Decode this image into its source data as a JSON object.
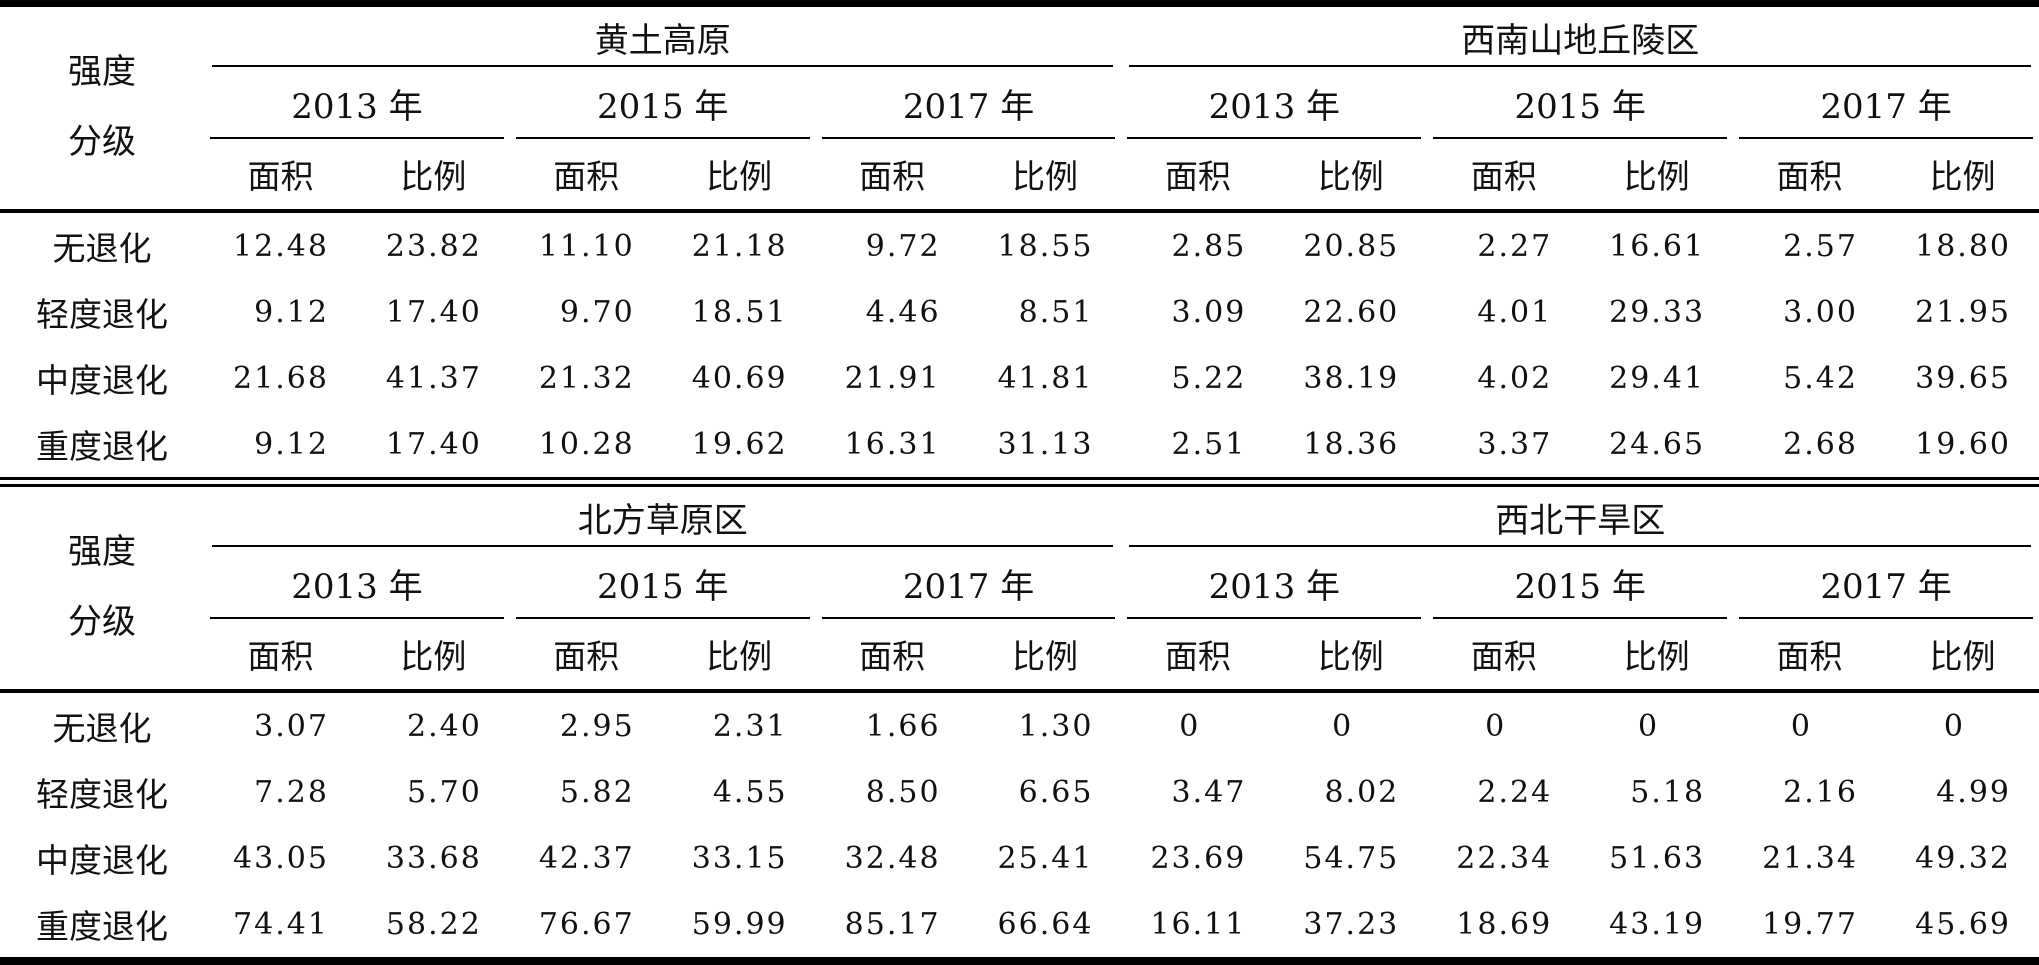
{
  "table": {
    "row_header": {
      "line1": "强度",
      "line2": "分级"
    },
    "col_headers": {
      "area": "面积",
      "ratio": "比例"
    },
    "years": [
      "2013 年",
      "2015 年",
      "2017 年"
    ],
    "colors": {
      "text": "#111111",
      "line": "#000000",
      "background": "#ffffff"
    },
    "sections": [
      {
        "regions": [
          "黄土高原",
          "西南山地丘陵区"
        ],
        "rows": [
          {
            "label": "无退化",
            "values": [
              "12.48",
              "23.82",
              "11.10",
              "21.18",
              "9.72",
              "18.55",
              "2.85",
              "20.85",
              "2.27",
              "16.61",
              "2.57",
              "18.80"
            ]
          },
          {
            "label": "轻度退化",
            "values": [
              "9.12",
              "17.40",
              "9.70",
              "18.51",
              "4.46",
              "8.51",
              "3.09",
              "22.60",
              "4.01",
              "29.33",
              "3.00",
              "21.95"
            ]
          },
          {
            "label": "中度退化",
            "values": [
              "21.68",
              "41.37",
              "21.32",
              "40.69",
              "21.91",
              "41.81",
              "5.22",
              "38.19",
              "4.02",
              "29.41",
              "5.42",
              "39.65"
            ]
          },
          {
            "label": "重度退化",
            "values": [
              "9.12",
              "17.40",
              "10.28",
              "19.62",
              "16.31",
              "31.13",
              "2.51",
              "18.36",
              "3.37",
              "24.65",
              "2.68",
              "19.60"
            ]
          }
        ]
      },
      {
        "regions": [
          "北方草原区",
          "西北干旱区"
        ],
        "rows": [
          {
            "label": "无退化",
            "values": [
              "3.07",
              "2.40",
              "2.95",
              "2.31",
              "1.66",
              "1.30",
              "0",
              "0",
              "0",
              "0",
              "0",
              "0"
            ]
          },
          {
            "label": "轻度退化",
            "values": [
              "7.28",
              "5.70",
              "5.82",
              "4.55",
              "8.50",
              "6.65",
              "3.47",
              "8.02",
              "2.24",
              "5.18",
              "2.16",
              "4.99"
            ]
          },
          {
            "label": "中度退化",
            "values": [
              "43.05",
              "33.68",
              "42.37",
              "33.15",
              "32.48",
              "25.41",
              "23.69",
              "54.75",
              "22.34",
              "51.63",
              "21.34",
              "49.32"
            ]
          },
          {
            "label": "重度退化",
            "values": [
              "74.41",
              "58.22",
              "76.67",
              "59.99",
              "85.17",
              "66.64",
              "16.11",
              "37.23",
              "18.69",
              "43.19",
              "19.77",
              "45.69"
            ]
          }
        ]
      }
    ]
  }
}
